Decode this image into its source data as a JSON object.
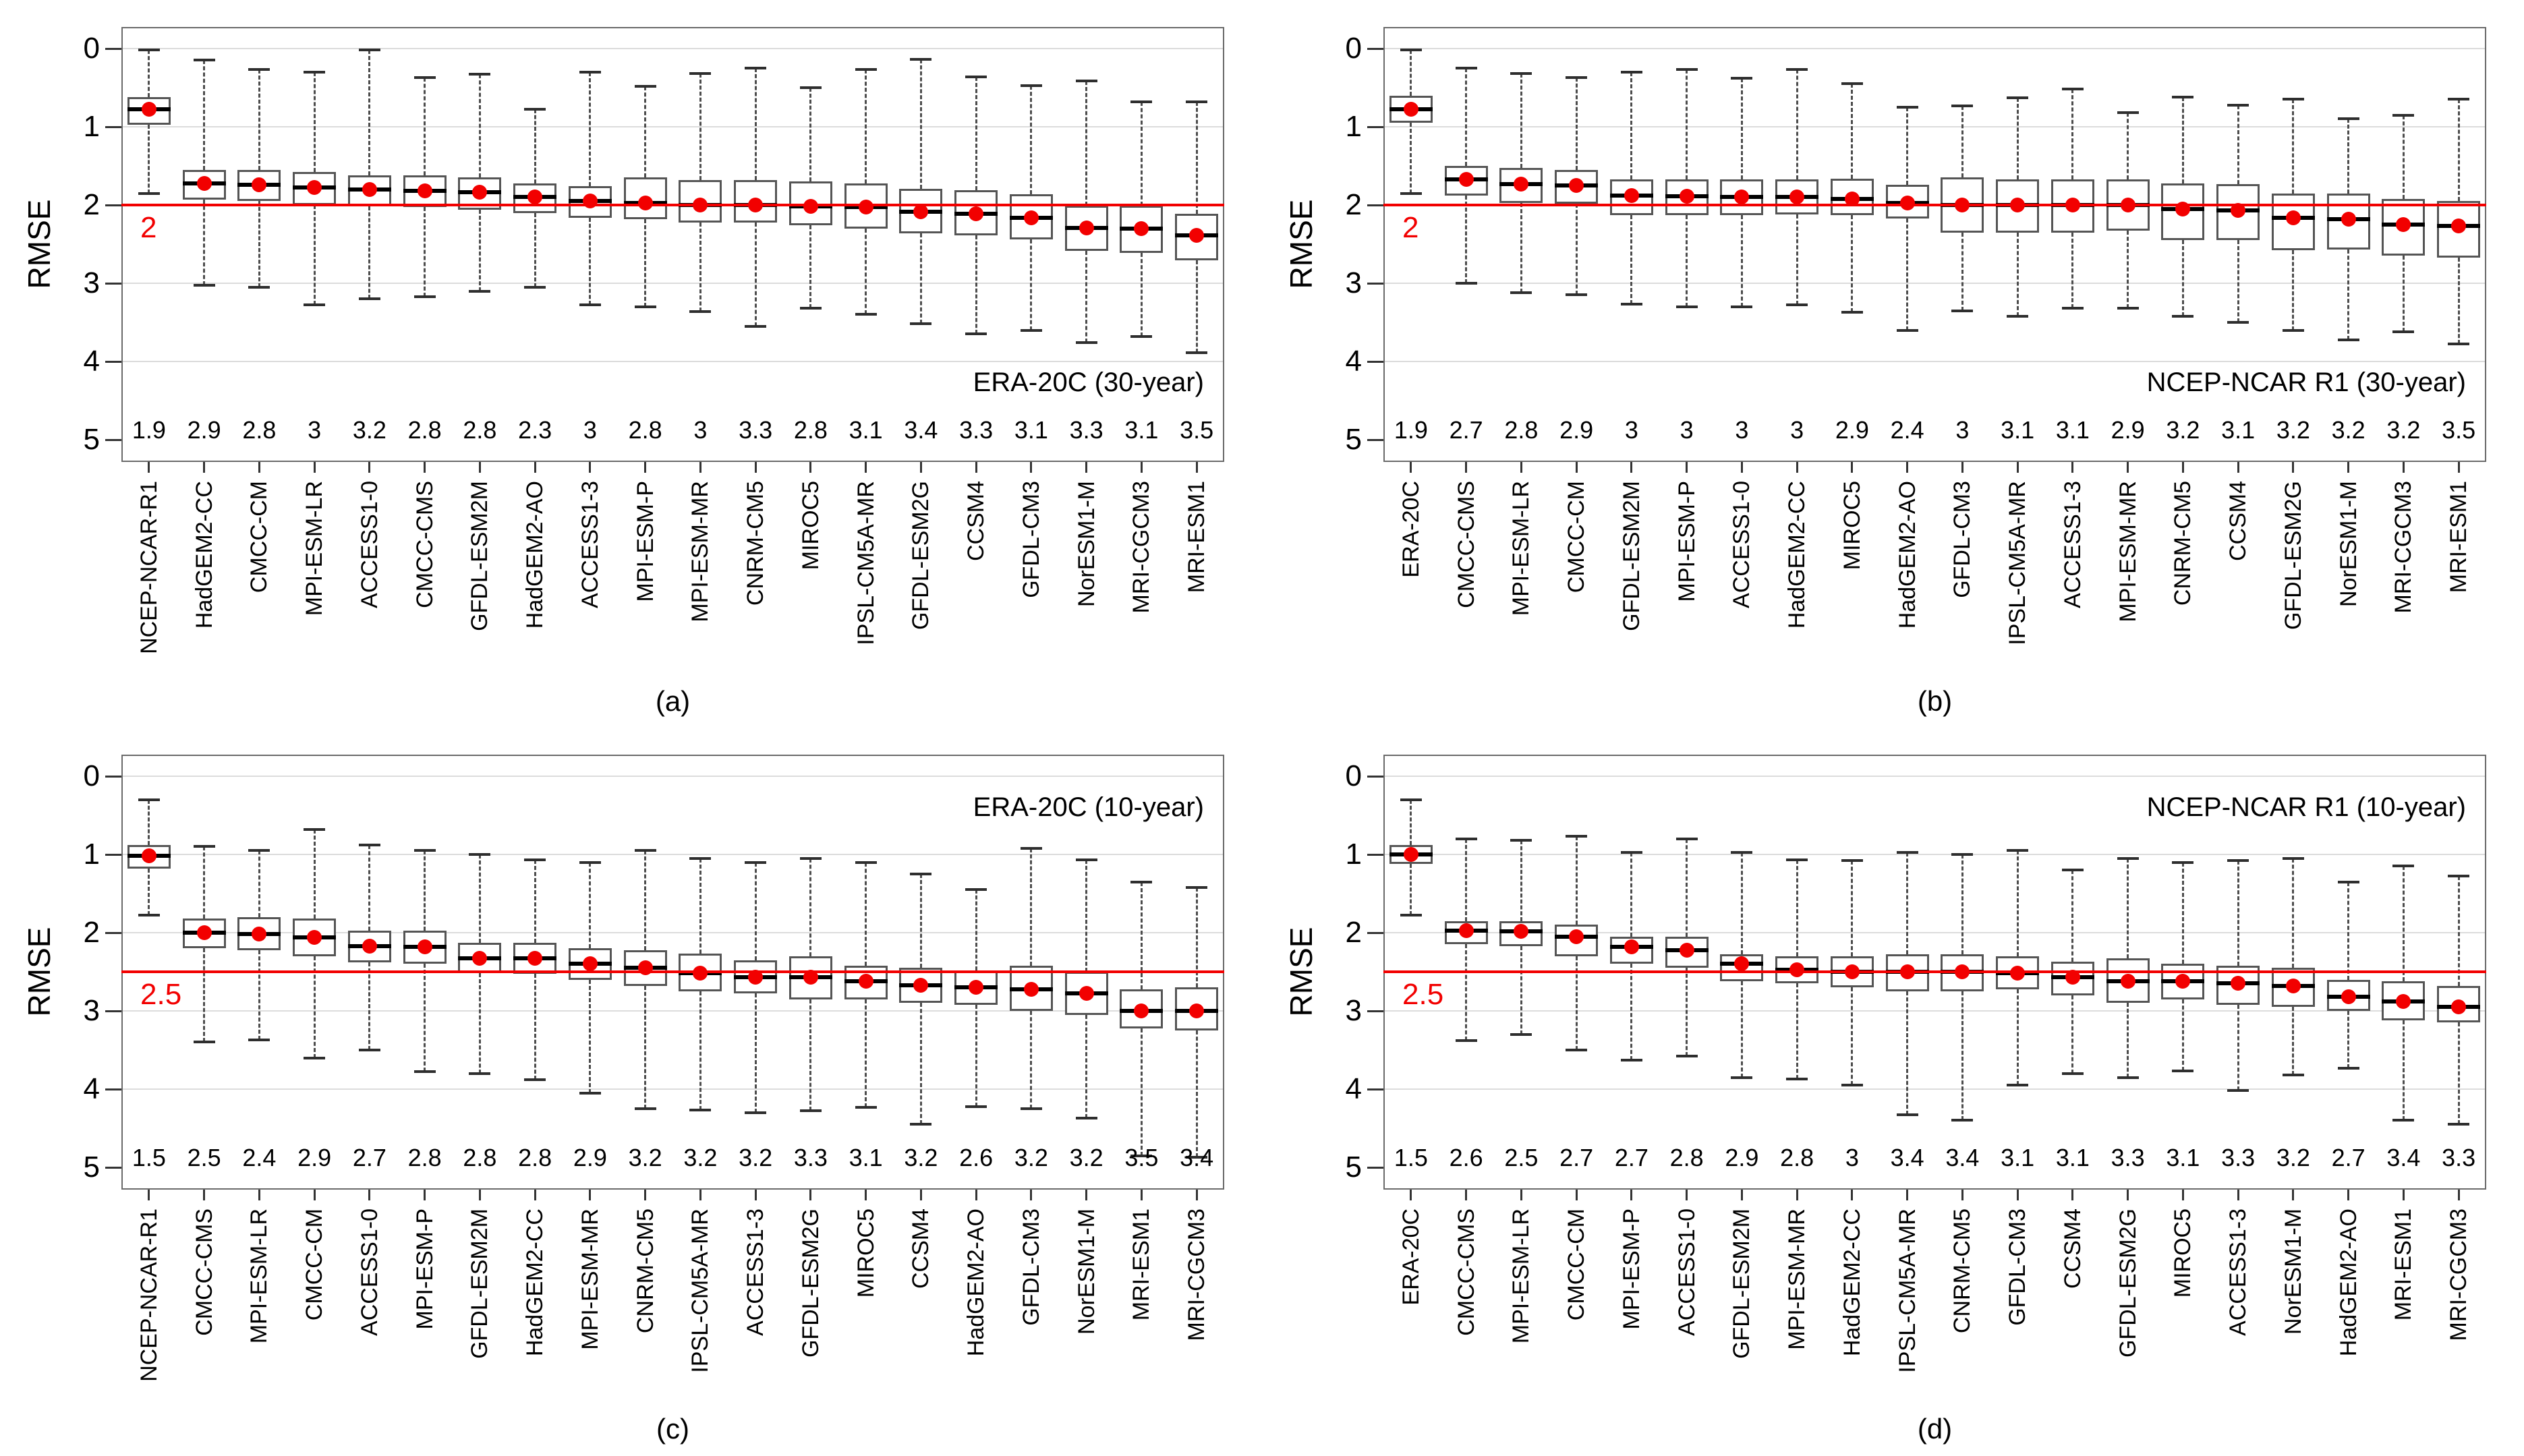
{
  "figure": {
    "ylabel": "RMSE",
    "y_ticks": [
      "0",
      "1",
      "2",
      "3",
      "4",
      "5"
    ],
    "captions": {
      "a": "(a)",
      "b": "(b)",
      "c": "(c)",
      "d": "(d)"
    },
    "colors": {
      "threshold_red": "#f20000",
      "dot_red": "#f20000",
      "grid": "#dcdcdc",
      "box_border": "#555555",
      "whisker": "#4d4d4d",
      "median": "#000000",
      "frame": "#6a6a6a",
      "text": "#000000"
    }
  },
  "chart_data": [
    {
      "type": "boxplot",
      "panel": "a",
      "caption": "(a)",
      "title": "ERA-20C (30-year)",
      "title_position": "bottom-right",
      "ylabel": "RMSE",
      "ylim": [
        0,
        5
      ],
      "y_inverted": true,
      "grid": "horizontal",
      "threshold": 2,
      "threshold_label": "2",
      "models": [
        {
          "name": "NCEP-NCAR-R1",
          "label_value": "1.9",
          "min": 0.02,
          "q1": 0.62,
          "median": 0.78,
          "q3": 0.97,
          "max": 1.85
        },
        {
          "name": "HadGEM2-CC",
          "label_value": "2.9",
          "min": 0.15,
          "q1": 1.55,
          "median": 1.72,
          "q3": 1.93,
          "max": 3.03
        },
        {
          "name": "CMCC-CM",
          "label_value": "2.8",
          "min": 0.27,
          "q1": 1.55,
          "median": 1.74,
          "q3": 1.95,
          "max": 3.05
        },
        {
          "name": "MPI-ESM-LR",
          "label_value": "3",
          "min": 0.3,
          "q1": 1.58,
          "median": 1.78,
          "q3": 2.0,
          "max": 3.28
        },
        {
          "name": "ACCESS1-0",
          "label_value": "3.2",
          "min": 0.02,
          "q1": 1.62,
          "median": 1.8,
          "q3": 2.02,
          "max": 3.2
        },
        {
          "name": "CMCC-CMS",
          "label_value": "2.8",
          "min": 0.37,
          "q1": 1.62,
          "median": 1.82,
          "q3": 2.03,
          "max": 3.17
        },
        {
          "name": "GFDL-ESM2M",
          "label_value": "2.8",
          "min": 0.33,
          "q1": 1.65,
          "median": 1.84,
          "q3": 2.06,
          "max": 3.1
        },
        {
          "name": "HadGEM2-AO",
          "label_value": "2.3",
          "min": 0.78,
          "q1": 1.72,
          "median": 1.9,
          "q3": 2.1,
          "max": 3.05
        },
        {
          "name": "ACCESS1-3",
          "label_value": "3",
          "min": 0.3,
          "q1": 1.76,
          "median": 1.95,
          "q3": 2.16,
          "max": 3.28
        },
        {
          "name": "MPI-ESM-P",
          "label_value": "2.8",
          "min": 0.48,
          "q1": 1.65,
          "median": 1.97,
          "q3": 2.18,
          "max": 3.3
        },
        {
          "name": "MPI-ESM-MR",
          "label_value": "3",
          "min": 0.32,
          "q1": 1.68,
          "median": 2.0,
          "q3": 2.22,
          "max": 3.36
        },
        {
          "name": "CNRM-CM5",
          "label_value": "3.3",
          "min": 0.25,
          "q1": 1.68,
          "median": 2.0,
          "q3": 2.22,
          "max": 3.55
        },
        {
          "name": "MIROC5",
          "label_value": "2.8",
          "min": 0.5,
          "q1": 1.7,
          "median": 2.02,
          "q3": 2.26,
          "max": 3.32
        },
        {
          "name": "IPSL-CM5A-MR",
          "label_value": "3.1",
          "min": 0.27,
          "q1": 1.72,
          "median": 2.03,
          "q3": 2.3,
          "max": 3.4
        },
        {
          "name": "GFDL-ESM2G",
          "label_value": "3.4",
          "min": 0.14,
          "q1": 1.79,
          "median": 2.09,
          "q3": 2.36,
          "max": 3.52
        },
        {
          "name": "CCSM4",
          "label_value": "3.3",
          "min": 0.36,
          "q1": 1.81,
          "median": 2.11,
          "q3": 2.39,
          "max": 3.65
        },
        {
          "name": "GFDL-CM3",
          "label_value": "3.1",
          "min": 0.47,
          "q1": 1.86,
          "median": 2.16,
          "q3": 2.44,
          "max": 3.6
        },
        {
          "name": "NorESM1-M",
          "label_value": "3.3",
          "min": 0.41,
          "q1": 2.01,
          "median": 2.29,
          "q3": 2.59,
          "max": 3.76
        },
        {
          "name": "MRI-CGCM3",
          "label_value": "3.1",
          "min": 0.68,
          "q1": 2.01,
          "median": 2.3,
          "q3": 2.61,
          "max": 3.68
        },
        {
          "name": "MRI-ESM1",
          "label_value": "3.5",
          "min": 0.68,
          "q1": 2.11,
          "median": 2.39,
          "q3": 2.71,
          "max": 3.89
        }
      ]
    },
    {
      "type": "boxplot",
      "panel": "b",
      "caption": "(b)",
      "title": "NCEP-NCAR R1 (30-year)",
      "title_position": "bottom-right",
      "ylabel": "RMSE",
      "ylim": [
        0,
        5
      ],
      "y_inverted": true,
      "grid": "horizontal",
      "threshold": 2,
      "threshold_label": "2",
      "models": [
        {
          "name": "ERA-20C",
          "label_value": "1.9",
          "min": 0.02,
          "q1": 0.6,
          "median": 0.78,
          "q3": 0.95,
          "max": 1.85
        },
        {
          "name": "CMCC-CMS",
          "label_value": "2.7",
          "min": 0.25,
          "q1": 1.5,
          "median": 1.67,
          "q3": 1.88,
          "max": 3.0
        },
        {
          "name": "MPI-ESM-LR",
          "label_value": "2.8",
          "min": 0.32,
          "q1": 1.53,
          "median": 1.73,
          "q3": 1.97,
          "max": 3.12
        },
        {
          "name": "CMCC-CM",
          "label_value": "2.9",
          "min": 0.37,
          "q1": 1.55,
          "median": 1.75,
          "q3": 1.98,
          "max": 3.15
        },
        {
          "name": "GFDL-ESM2M",
          "label_value": "3",
          "min": 0.3,
          "q1": 1.67,
          "median": 1.88,
          "q3": 2.13,
          "max": 3.27
        },
        {
          "name": "MPI-ESM-P",
          "label_value": "3",
          "min": 0.27,
          "q1": 1.67,
          "median": 1.89,
          "q3": 2.13,
          "max": 3.3
        },
        {
          "name": "ACCESS1-0",
          "label_value": "3",
          "min": 0.38,
          "q1": 1.67,
          "median": 1.9,
          "q3": 2.13,
          "max": 3.3
        },
        {
          "name": "HadGEM2-CC",
          "label_value": "3",
          "min": 0.27,
          "q1": 1.67,
          "median": 1.9,
          "q3": 2.12,
          "max": 3.28
        },
        {
          "name": "MIROC5",
          "label_value": "2.9",
          "min": 0.45,
          "q1": 1.66,
          "median": 1.92,
          "q3": 2.13,
          "max": 3.37
        },
        {
          "name": "HadGEM2-AO",
          "label_value": "2.4",
          "min": 0.75,
          "q1": 1.74,
          "median": 1.97,
          "q3": 2.17,
          "max": 3.6
        },
        {
          "name": "GFDL-CM3",
          "label_value": "3",
          "min": 0.73,
          "q1": 1.65,
          "median": 2.0,
          "q3": 2.35,
          "max": 3.35
        },
        {
          "name": "IPSL-CM5A-MR",
          "label_value": "3.1",
          "min": 0.63,
          "q1": 1.67,
          "median": 2.0,
          "q3": 2.35,
          "max": 3.42
        },
        {
          "name": "ACCESS1-3",
          "label_value": "3.1",
          "min": 0.52,
          "q1": 1.67,
          "median": 2.0,
          "q3": 2.35,
          "max": 3.32
        },
        {
          "name": "MPI-ESM-MR",
          "label_value": "2.9",
          "min": 0.82,
          "q1": 1.67,
          "median": 2.0,
          "q3": 2.33,
          "max": 3.32
        },
        {
          "name": "CNRM-CM5",
          "label_value": "3.2",
          "min": 0.62,
          "q1": 1.72,
          "median": 2.05,
          "q3": 2.45,
          "max": 3.42
        },
        {
          "name": "CCSM4",
          "label_value": "3.1",
          "min": 0.72,
          "q1": 1.73,
          "median": 2.07,
          "q3": 2.45,
          "max": 3.5
        },
        {
          "name": "GFDL-ESM2G",
          "label_value": "3.2",
          "min": 0.65,
          "q1": 1.85,
          "median": 2.16,
          "q3": 2.58,
          "max": 3.6
        },
        {
          "name": "NorESM1-M",
          "label_value": "3.2",
          "min": 0.9,
          "q1": 1.85,
          "median": 2.18,
          "q3": 2.57,
          "max": 3.72
        },
        {
          "name": "MRI-CGCM3",
          "label_value": "3.2",
          "min": 0.85,
          "q1": 1.92,
          "median": 2.25,
          "q3": 2.65,
          "max": 3.62
        },
        {
          "name": "MRI-ESM1",
          "label_value": "3.5",
          "min": 0.65,
          "q1": 1.95,
          "median": 2.27,
          "q3": 2.67,
          "max": 3.78
        }
      ]
    },
    {
      "type": "boxplot",
      "panel": "c",
      "caption": "(c)",
      "title": "ERA-20C (10-year)",
      "title_position": "top-right",
      "ylabel": "RMSE",
      "ylim": [
        0,
        5
      ],
      "y_inverted": true,
      "grid": "horizontal",
      "threshold": 2.5,
      "threshold_label": "2.5",
      "models": [
        {
          "name": "NCEP-NCAR-R1",
          "label_value": "1.5",
          "min": 0.3,
          "q1": 0.88,
          "median": 1.02,
          "q3": 1.18,
          "max": 1.78
        },
        {
          "name": "CMCC-CMS",
          "label_value": "2.5",
          "min": 0.9,
          "q1": 1.82,
          "median": 2.0,
          "q3": 2.2,
          "max": 3.4
        },
        {
          "name": "MPI-ESM-LR",
          "label_value": "2.4",
          "min": 0.95,
          "q1": 1.8,
          "median": 2.02,
          "q3": 2.22,
          "max": 3.37
        },
        {
          "name": "CMCC-CM",
          "label_value": "2.9",
          "min": 0.68,
          "q1": 1.82,
          "median": 2.06,
          "q3": 2.3,
          "max": 3.6
        },
        {
          "name": "ACCESS1-0",
          "label_value": "2.7",
          "min": 0.88,
          "q1": 1.97,
          "median": 2.17,
          "q3": 2.38,
          "max": 3.5
        },
        {
          "name": "MPI-ESM-P",
          "label_value": "2.8",
          "min": 0.95,
          "q1": 1.97,
          "median": 2.18,
          "q3": 2.4,
          "max": 3.78
        },
        {
          "name": "GFDL-ESM2M",
          "label_value": "2.8",
          "min": 1.0,
          "q1": 2.13,
          "median": 2.33,
          "q3": 2.52,
          "max": 3.8
        },
        {
          "name": "HadGEM2-CC",
          "label_value": "2.8",
          "min": 1.07,
          "q1": 2.13,
          "median": 2.33,
          "q3": 2.53,
          "max": 3.88
        },
        {
          "name": "MPI-ESM-MR",
          "label_value": "2.9",
          "min": 1.1,
          "q1": 2.2,
          "median": 2.4,
          "q3": 2.6,
          "max": 4.05
        },
        {
          "name": "CNRM-CM5",
          "label_value": "3.2",
          "min": 0.95,
          "q1": 2.22,
          "median": 2.45,
          "q3": 2.68,
          "max": 4.25
        },
        {
          "name": "IPSL-CM5A-MR",
          "label_value": "3.2",
          "min": 1.05,
          "q1": 2.27,
          "median": 2.52,
          "q3": 2.75,
          "max": 4.27
        },
        {
          "name": "ACCESS1-3",
          "label_value": "3.2",
          "min": 1.1,
          "q1": 2.35,
          "median": 2.57,
          "q3": 2.78,
          "max": 4.3
        },
        {
          "name": "GFDL-ESM2G",
          "label_value": "3.3",
          "min": 1.05,
          "q1": 2.3,
          "median": 2.57,
          "q3": 2.85,
          "max": 4.28
        },
        {
          "name": "MIROC5",
          "label_value": "3.1",
          "min": 1.1,
          "q1": 2.42,
          "median": 2.62,
          "q3": 2.85,
          "max": 4.23
        },
        {
          "name": "CCSM4",
          "label_value": "3.2",
          "min": 1.25,
          "q1": 2.45,
          "median": 2.67,
          "q3": 2.9,
          "max": 4.45
        },
        {
          "name": "HadGEM2-AO",
          "label_value": "2.6",
          "min": 1.45,
          "q1": 2.48,
          "median": 2.7,
          "q3": 2.92,
          "max": 4.22
        },
        {
          "name": "GFDL-CM3",
          "label_value": "3.2",
          "min": 0.92,
          "q1": 2.42,
          "median": 2.72,
          "q3": 3.0,
          "max": 4.25
        },
        {
          "name": "NorESM1-M",
          "label_value": "3.2",
          "min": 1.07,
          "q1": 2.5,
          "median": 2.78,
          "q3": 3.05,
          "max": 4.37
        },
        {
          "name": "MRI-ESM1",
          "label_value": "3.5",
          "min": 1.35,
          "q1": 2.72,
          "median": 3.0,
          "q3": 3.22,
          "max": 4.85
        },
        {
          "name": "MRI-CGCM3",
          "label_value": "3.4",
          "min": 1.42,
          "q1": 2.7,
          "median": 3.0,
          "q3": 3.25,
          "max": 4.87
        }
      ]
    },
    {
      "type": "boxplot",
      "panel": "d",
      "caption": "(d)",
      "title": "NCEP-NCAR R1 (10-year)",
      "title_position": "top-right",
      "ylabel": "RMSE",
      "ylim": [
        0,
        5
      ],
      "y_inverted": true,
      "grid": "horizontal",
      "threshold": 2.5,
      "threshold_label": "2.5",
      "models": [
        {
          "name": "ERA-20C",
          "label_value": "1.5",
          "min": 0.3,
          "q1": 0.88,
          "median": 1.0,
          "q3": 1.12,
          "max": 1.78
        },
        {
          "name": "CMCC-CMS",
          "label_value": "2.6",
          "min": 0.8,
          "q1": 1.85,
          "median": 1.97,
          "q3": 2.15,
          "max": 3.38
        },
        {
          "name": "MPI-ESM-LR",
          "label_value": "2.5",
          "min": 0.82,
          "q1": 1.85,
          "median": 1.98,
          "q3": 2.17,
          "max": 3.3
        },
        {
          "name": "CMCC-CM",
          "label_value": "2.7",
          "min": 0.77,
          "q1": 1.9,
          "median": 2.05,
          "q3": 2.3,
          "max": 3.5
        },
        {
          "name": "MPI-ESM-P",
          "label_value": "2.7",
          "min": 0.97,
          "q1": 2.05,
          "median": 2.18,
          "q3": 2.4,
          "max": 3.63
        },
        {
          "name": "ACCESS1-0",
          "label_value": "2.8",
          "min": 0.8,
          "q1": 2.05,
          "median": 2.22,
          "q3": 2.45,
          "max": 3.58
        },
        {
          "name": "GFDL-ESM2M",
          "label_value": "2.9",
          "min": 0.97,
          "q1": 2.28,
          "median": 2.4,
          "q3": 2.62,
          "max": 3.85
        },
        {
          "name": "MPI-ESM-MR",
          "label_value": "2.8",
          "min": 1.07,
          "q1": 2.3,
          "median": 2.47,
          "q3": 2.65,
          "max": 3.87
        },
        {
          "name": "HadGEM2-CC",
          "label_value": "3",
          "min": 1.08,
          "q1": 2.3,
          "median": 2.5,
          "q3": 2.7,
          "max": 3.95
        },
        {
          "name": "IPSL-CM5A-MR",
          "label_value": "3.4",
          "min": 0.97,
          "q1": 2.28,
          "median": 2.5,
          "q3": 2.75,
          "max": 4.33
        },
        {
          "name": "CNRM-CM5",
          "label_value": "3.4",
          "min": 1.0,
          "q1": 2.28,
          "median": 2.5,
          "q3": 2.75,
          "max": 4.4
        },
        {
          "name": "GFDL-CM3",
          "label_value": "3.1",
          "min": 0.95,
          "q1": 2.3,
          "median": 2.52,
          "q3": 2.72,
          "max": 3.95
        },
        {
          "name": "CCSM4",
          "label_value": "3.1",
          "min": 1.2,
          "q1": 2.37,
          "median": 2.57,
          "q3": 2.8,
          "max": 3.8
        },
        {
          "name": "GFDL-ESM2G",
          "label_value": "3.3",
          "min": 1.05,
          "q1": 2.33,
          "median": 2.62,
          "q3": 2.9,
          "max": 3.85
        },
        {
          "name": "MIROC5",
          "label_value": "3.1",
          "min": 1.1,
          "q1": 2.4,
          "median": 2.62,
          "q3": 2.85,
          "max": 3.77
        },
        {
          "name": "ACCESS1-3",
          "label_value": "3.3",
          "min": 1.08,
          "q1": 2.42,
          "median": 2.65,
          "q3": 2.92,
          "max": 4.02
        },
        {
          "name": "NorESM1-M",
          "label_value": "3.2",
          "min": 1.05,
          "q1": 2.45,
          "median": 2.68,
          "q3": 2.95,
          "max": 3.82
        },
        {
          "name": "HadGEM2-AO",
          "label_value": "2.7",
          "min": 1.35,
          "q1": 2.6,
          "median": 2.82,
          "q3": 3.0,
          "max": 3.73
        },
        {
          "name": "MRI-ESM1",
          "label_value": "3.4",
          "min": 1.15,
          "q1": 2.62,
          "median": 2.88,
          "q3": 3.12,
          "max": 4.4
        },
        {
          "name": "MRI-CGCM3",
          "label_value": "3.3",
          "min": 1.28,
          "q1": 2.68,
          "median": 2.95,
          "q3": 3.15,
          "max": 4.45
        }
      ]
    }
  ]
}
